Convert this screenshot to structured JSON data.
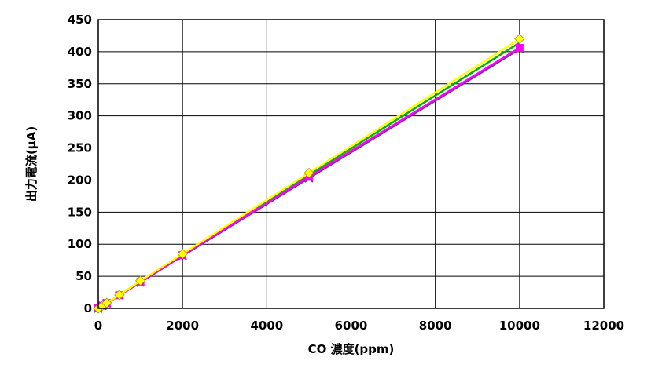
{
  "chart_data": {
    "type": "line",
    "title": "",
    "xlabel": "CO 濃度(ppm)",
    "ylabel": "出力電流(μA)",
    "xlim": [
      0,
      12000
    ],
    "ylim": [
      0,
      450
    ],
    "x_ticks": [
      0,
      2000,
      4000,
      6000,
      8000,
      10000,
      12000
    ],
    "y_ticks": [
      0,
      50,
      100,
      150,
      200,
      250,
      300,
      350,
      400,
      450
    ],
    "grid": {
      "x": true,
      "y": true
    },
    "legend": "none",
    "series": [
      {
        "color": "#FFFF00",
        "marker": "diamond",
        "x": [
          0,
          100,
          200,
          500,
          1000,
          2000,
          5000,
          10000
        ],
        "y": [
          0,
          4.3,
          8.5,
          21,
          43,
          85,
          211,
          420
        ]
      },
      {
        "color": "#00B000",
        "marker": "none",
        "x": [
          0,
          100,
          200,
          500,
          1000,
          2000,
          5000,
          10000
        ],
        "y": [
          0,
          4.2,
          8.3,
          20.8,
          42,
          84,
          208,
          414
        ]
      },
      {
        "color": "#FF00FF",
        "marker": "square",
        "x": [
          0,
          100,
          200,
          500,
          1000,
          2000,
          5000,
          10000
        ],
        "y": [
          0,
          4.1,
          8.2,
          20.5,
          41,
          83,
          205,
          406
        ]
      },
      {
        "color": "#7030A0",
        "marker": "x",
        "x": [
          0,
          100,
          200,
          500,
          1000,
          2000,
          5000,
          10000
        ],
        "y": [
          0,
          4.0,
          8.0,
          20.3,
          40.5,
          82,
          203,
          404
        ]
      }
    ]
  }
}
